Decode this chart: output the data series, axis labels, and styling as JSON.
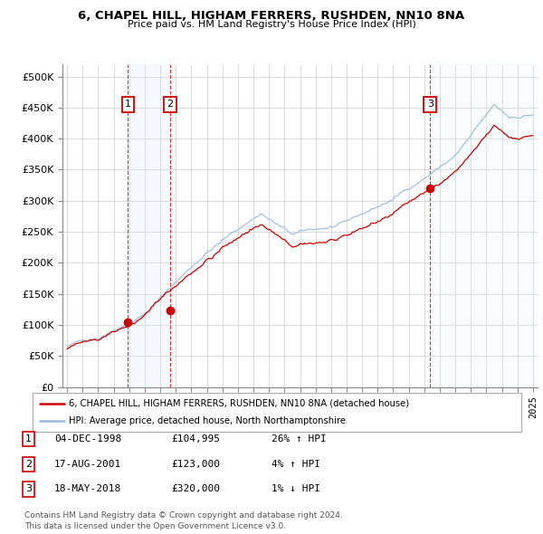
{
  "title": "6, CHAPEL HILL, HIGHAM FERRERS, RUSHDEN, NN10 8NA",
  "subtitle": "Price paid vs. HM Land Registry's House Price Index (HPI)",
  "sale_dates_num": [
    1998.92,
    2001.63,
    2018.38
  ],
  "sale_prices": [
    104995,
    123000,
    320000
  ],
  "sale_labels": [
    "1",
    "2",
    "3"
  ],
  "hpi_line_color": "#99bbdd",
  "price_line_color": "#cc0000",
  "sale_marker_color": "#cc0000",
  "vline_color": "#cc0000",
  "shade_color": "#ddeeff",
  "xlim": [
    1994.7,
    2025.3
  ],
  "ylim": [
    0,
    520000
  ],
  "yticks": [
    0,
    50000,
    100000,
    150000,
    200000,
    250000,
    300000,
    350000,
    400000,
    450000,
    500000
  ],
  "legend_entries": [
    "6, CHAPEL HILL, HIGHAM FERRERS, RUSHDEN, NN10 8NA (detached house)",
    "HPI: Average price, detached house, North Northamptonshire"
  ],
  "table_rows": [
    [
      "1",
      "04-DEC-1998",
      "£104,995",
      "26% ↑ HPI"
    ],
    [
      "2",
      "17-AUG-2001",
      "£123,000",
      "4% ↑ HPI"
    ],
    [
      "3",
      "18-MAY-2018",
      "£320,000",
      "1% ↓ HPI"
    ]
  ],
  "footer": "Contains HM Land Registry data © Crown copyright and database right 2024.\nThis data is licensed under the Open Government Licence v3.0.",
  "bg_color": "#ffffff",
  "grid_color": "#cccccc"
}
